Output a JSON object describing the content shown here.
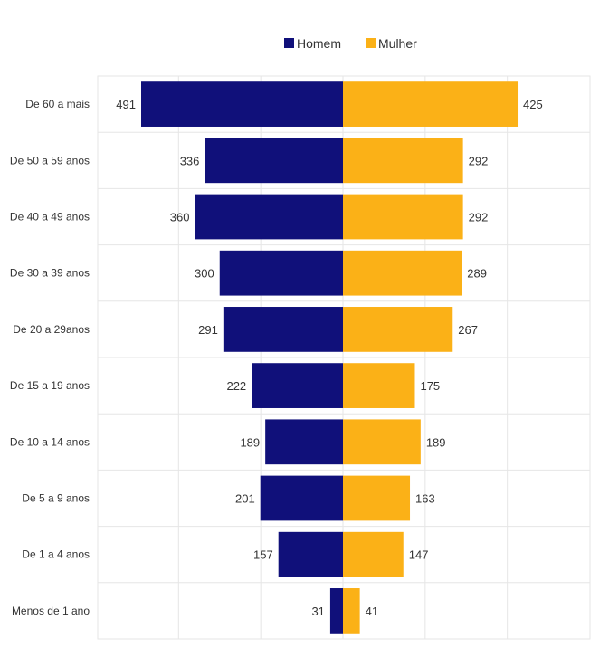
{
  "chart_data": {
    "type": "bar",
    "orientation": "horizontal",
    "layout": "population-pyramid",
    "categories": [
      "De 60 a mais",
      "De 50 a 59 anos",
      "De 40 a 49 anos",
      "De 30 a 39 anos",
      "De 20 a 29anos",
      "De 15 a 19 anos",
      "De 10 a 14 anos",
      "De 5 a 9 anos",
      "De 1 a 4 anos",
      "Menos de 1 ano"
    ],
    "series": [
      {
        "name": "Homem",
        "color": "#10107a",
        "side": "left",
        "values": [
          491,
          336,
          360,
          300,
          291,
          222,
          189,
          201,
          157,
          31
        ]
      },
      {
        "name": "Mulher",
        "color": "#fbb117",
        "side": "right",
        "values": [
          425,
          292,
          292,
          289,
          267,
          175,
          189,
          163,
          147,
          41
        ]
      }
    ],
    "xlim": [
      -500,
      500
    ],
    "grid": true,
    "legend": "top-center",
    "title": "",
    "xlabel": "",
    "ylabel": ""
  }
}
